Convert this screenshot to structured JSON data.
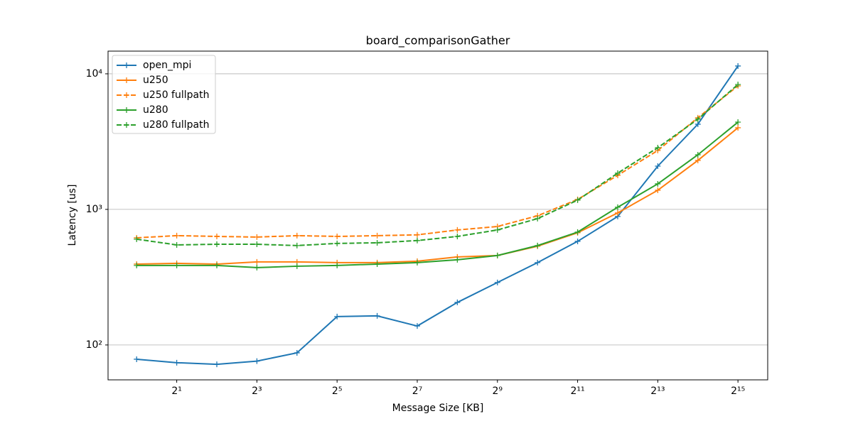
{
  "chart_data": {
    "type": "line",
    "title": "board_comparisonGather",
    "x_label": "Message Size [KB]",
    "y_label": "Latency [us]",
    "x": [
      1,
      2,
      4,
      8,
      16,
      32,
      64,
      128,
      256,
      512,
      1024,
      2048,
      4096,
      8192,
      16384,
      32768
    ],
    "x_scale": "log2",
    "y_scale": "log10",
    "xlim": [
      0.61,
      54800
    ],
    "ylim": [
      55.3,
      14700
    ],
    "xticks": [
      {
        "value": 2,
        "label": "2¹"
      },
      {
        "value": 8,
        "label": "2³"
      },
      {
        "value": 32,
        "label": "2⁵"
      },
      {
        "value": 128,
        "label": "2⁷"
      },
      {
        "value": 512,
        "label": "2⁹"
      },
      {
        "value": 2048,
        "label": "2¹¹"
      },
      {
        "value": 8192,
        "label": "2¹³"
      },
      {
        "value": 32768,
        "label": "2¹⁵"
      }
    ],
    "yticks": [
      {
        "value": 100,
        "label": "10²"
      },
      {
        "value": 1000,
        "label": "10³"
      },
      {
        "value": 10000,
        "label": "10⁴"
      }
    ],
    "grid": "y",
    "legend": "upper left",
    "series": [
      {
        "name": "open_mpi",
        "color": "#1f77b4",
        "dashed": false,
        "values": [
          78.5,
          74,
          72,
          76,
          87.5,
          162,
          164,
          138,
          206,
          289,
          405,
          581,
          887,
          2085,
          4250,
          11420
        ]
      },
      {
        "name": "u250",
        "color": "#ff7f0e",
        "dashed": false,
        "values": [
          395,
          400,
          395,
          410,
          410,
          405,
          405,
          415,
          446,
          457,
          535,
          672,
          942,
          1384,
          2297,
          4000
        ]
      },
      {
        "name": "u250 fullpath",
        "color": "#ff7f0e",
        "dashed": true,
        "values": [
          617,
          640,
          632,
          625,
          640,
          632,
          640,
          649,
          705,
          748,
          897,
          1184,
          1783,
          2720,
          4740,
          8150
        ]
      },
      {
        "name": "u280",
        "color": "#2ca02c",
        "dashed": false,
        "values": [
          386,
          386,
          386,
          372,
          381,
          386,
          395,
          405,
          425,
          457,
          541,
          680,
          1037,
          1543,
          2529,
          4400
        ]
      },
      {
        "name": "u280 fullpath",
        "color": "#2ca02c",
        "dashed": true,
        "values": [
          603,
          547,
          553,
          553,
          541,
          561,
          567,
          589,
          632,
          705,
          855,
          1170,
          1850,
          2852,
          4625,
          8340
        ]
      }
    ]
  }
}
